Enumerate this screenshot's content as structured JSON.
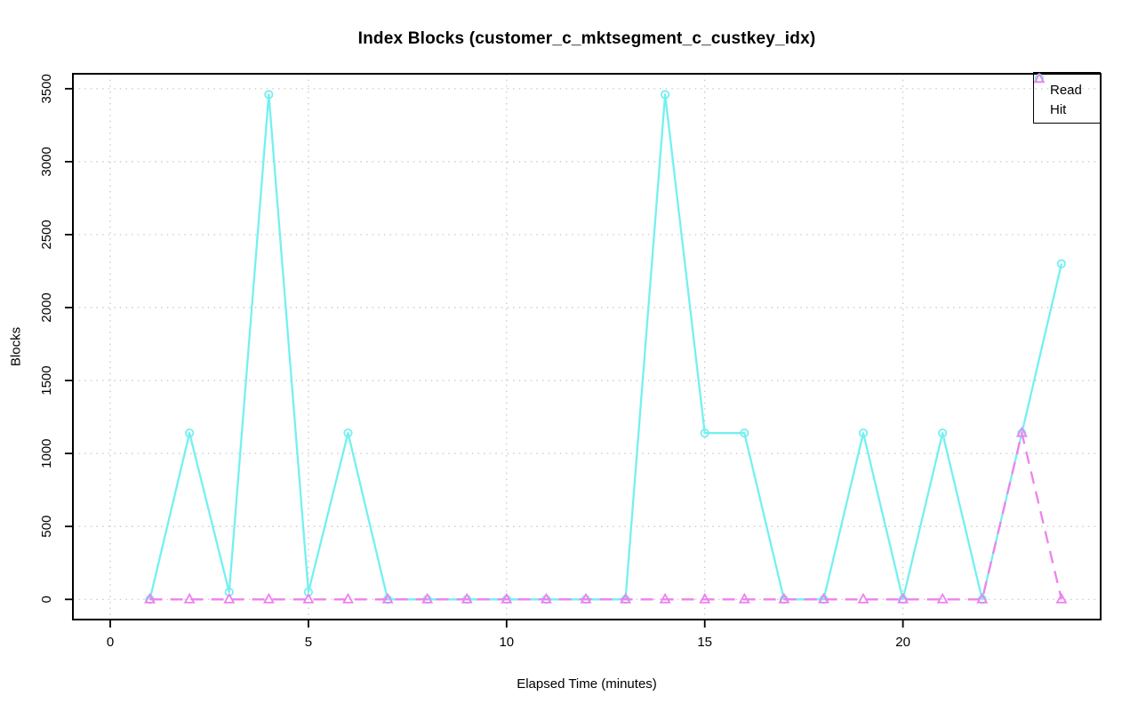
{
  "figure": {
    "background_color": "#FFFFFF",
    "axis_color": "#000000"
  },
  "chart_data": {
    "type": "line",
    "title": "Index Blocks (customer_c_mktsegment_c_custkey_idx)",
    "xlabel": "Elapsed Time (minutes)",
    "ylabel": "Blocks",
    "grid": true,
    "grid_style": "dotted",
    "grid_color": "#C8C8C8",
    "x_ticks": [
      0,
      5,
      10,
      15,
      20
    ],
    "y_ticks": [
      0,
      500,
      1000,
      1500,
      2000,
      2500,
      3000,
      3500
    ],
    "xlim": [
      -1,
      25
    ],
    "ylim": [
      -140,
      3600
    ],
    "x": [
      1,
      2,
      3,
      4,
      5,
      6,
      7,
      8,
      9,
      10,
      11,
      12,
      13,
      14,
      15,
      16,
      17,
      18,
      19,
      20,
      21,
      22,
      23,
      24
    ],
    "series": [
      {
        "name": "Read",
        "marker": "circle",
        "line_style": "solid",
        "color": "#74F0F0",
        "values": [
          0,
          1140,
          50,
          3460,
          50,
          1140,
          0,
          0,
          0,
          0,
          0,
          0,
          0,
          3460,
          1140,
          1140,
          0,
          0,
          1140,
          0,
          1140,
          0,
          1140,
          2300
        ]
      },
      {
        "name": "Hit",
        "marker": "triangle",
        "line_style": "dashed",
        "color": "#EE82EE",
        "values": [
          0,
          0,
          0,
          0,
          0,
          0,
          0,
          0,
          0,
          0,
          0,
          0,
          0,
          0,
          0,
          0,
          0,
          0,
          0,
          0,
          0,
          0,
          1140,
          0
        ]
      }
    ],
    "legend": {
      "position": "top-right",
      "items": [
        "Read",
        "Hit"
      ]
    }
  }
}
